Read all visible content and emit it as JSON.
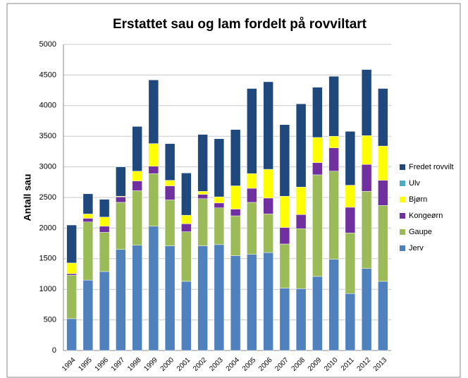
{
  "chart_data": {
    "type": "stacked_bar",
    "title": "Erstattet sau og lam fordelt på rovviltart",
    "y_label": "Antall sau",
    "categories": [
      "1994",
      "1995",
      "1996",
      "1997",
      "1998",
      "1999",
      "2000",
      "2001",
      "2002",
      "2003",
      "2004",
      "2005",
      "2006",
      "2007",
      "2008",
      "2009",
      "2010",
      "2011",
      "2012",
      "2013"
    ],
    "series": [
      {
        "name": "Jerv",
        "color": "#4f81bd",
        "values": [
          520,
          1150,
          1290,
          1650,
          1720,
          2030,
          1710,
          1130,
          1710,
          1730,
          1550,
          1570,
          1600,
          1020,
          1010,
          1210,
          1490,
          930,
          1340,
          1130
        ]
      },
      {
        "name": "Gaupe",
        "color": "#9bbb59",
        "values": [
          710,
          950,
          640,
          770,
          890,
          860,
          750,
          810,
          770,
          600,
          650,
          850,
          630,
          720,
          980,
          1660,
          1440,
          990,
          1260,
          1240
        ]
      },
      {
        "name": "Kongeørn",
        "color": "#7030a0",
        "values": [
          25,
          60,
          100,
          90,
          160,
          120,
          230,
          130,
          70,
          80,
          110,
          230,
          260,
          270,
          230,
          200,
          380,
          420,
          440,
          410
        ]
      },
      {
        "name": "Bjørn",
        "color": "#ffff00",
        "values": [
          175,
          70,
          150,
          10,
          160,
          370,
          90,
          140,
          50,
          100,
          380,
          240,
          470,
          510,
          450,
          410,
          190,
          360,
          470,
          560
        ]
      },
      {
        "name": "Ulv",
        "color": "#4bacc6",
        "values": [
          0,
          0,
          0,
          0,
          0,
          0,
          0,
          0,
          0,
          0,
          0,
          0,
          0,
          0,
          0,
          0,
          0,
          0,
          0,
          0
        ]
      },
      {
        "name": "Fredet rovvilt",
        "color": "#1f497d",
        "values": [
          620,
          330,
          290,
          480,
          730,
          1040,
          600,
          690,
          930,
          950,
          920,
          1390,
          1430,
          1170,
          1360,
          820,
          980,
          880,
          1080,
          940
        ]
      }
    ],
    "ylim": [
      0,
      5000
    ],
    "yticks": [
      0,
      500,
      1000,
      1500,
      2000,
      2500,
      3000,
      3500,
      4000,
      4500,
      5000
    ],
    "grid": true,
    "legend": "right"
  }
}
